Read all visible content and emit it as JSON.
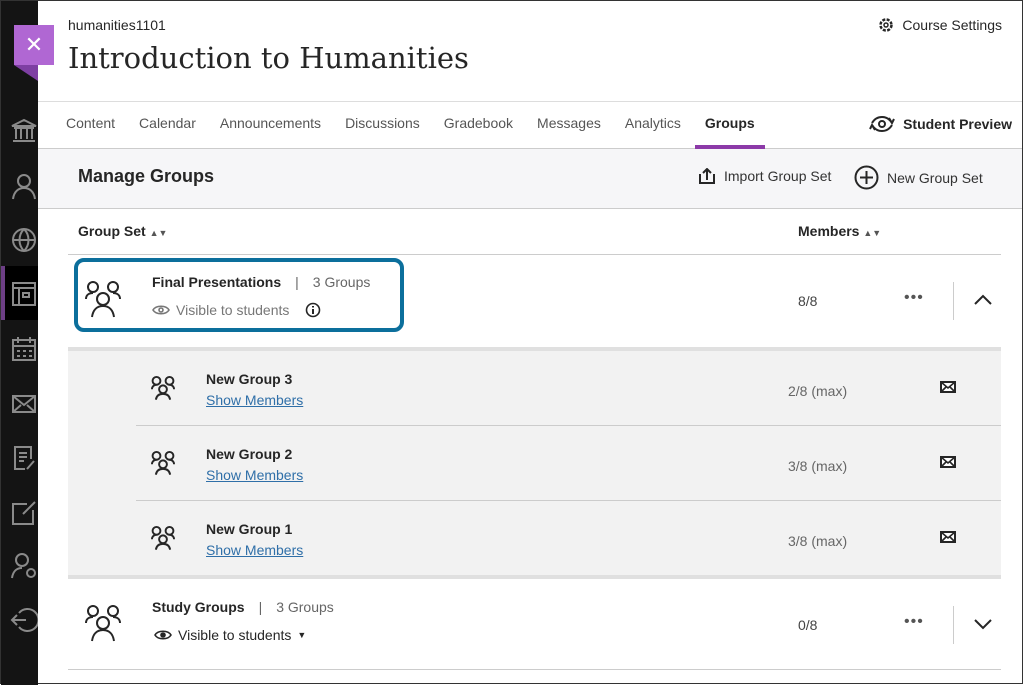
{
  "course": {
    "code": "humanities1101",
    "title": "Introduction to Humanities",
    "settings_label": "Course Settings",
    "close_icon": "close-icon"
  },
  "tabs": [
    {
      "label": "Content"
    },
    {
      "label": "Calendar"
    },
    {
      "label": "Announcements"
    },
    {
      "label": "Discussions"
    },
    {
      "label": "Gradebook"
    },
    {
      "label": "Messages"
    },
    {
      "label": "Analytics"
    },
    {
      "label": "Groups",
      "selected": true
    }
  ],
  "student_preview": "Student Preview",
  "manage": {
    "title": "Manage Groups",
    "import_label": "Import Group Set",
    "new_label": "New Group Set"
  },
  "columns": {
    "group_set": "Group Set",
    "members": "Members"
  },
  "accent": "#8c3aa8",
  "focus_color": "#0c6f9c",
  "group_sets": [
    {
      "name": "Final Presentations",
      "sep": "|",
      "count": "3 Groups",
      "visibility": "Visible to students",
      "members": "8/8",
      "expanded": true,
      "groups": [
        {
          "name": "New Group 3",
          "link": "Show Members",
          "members": "2/8 (max)"
        },
        {
          "name": "New Group 2",
          "link": "Show Members",
          "members": "3/8 (max)"
        },
        {
          "name": "New Group 1",
          "link": "Show Members",
          "members": "3/8 (max)"
        }
      ]
    },
    {
      "name": "Study Groups",
      "sep": "|",
      "count": "3 Groups",
      "visibility": "Visible to students",
      "members": "0/8",
      "expanded": false
    }
  ]
}
